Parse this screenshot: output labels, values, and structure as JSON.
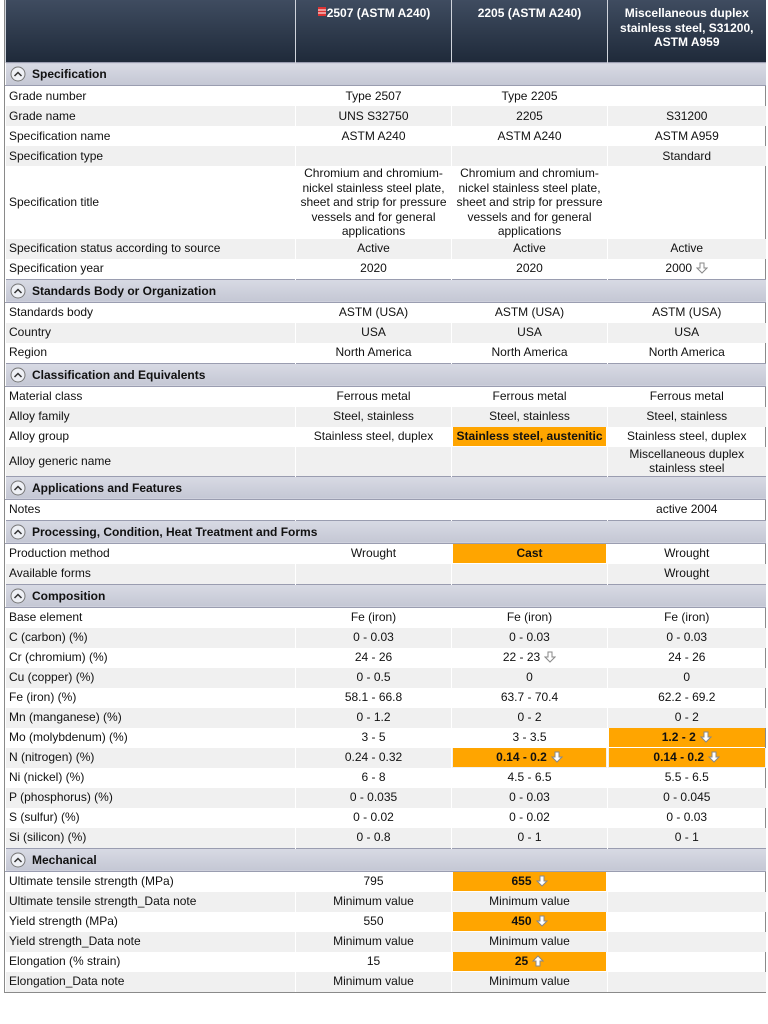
{
  "header": {
    "columns": [
      "2507 (ASTM A240)",
      "2205 (ASTM A240)",
      "Miscellaneous duplex stainless steel, S31200, ASTM A959"
    ]
  },
  "sections": [
    {
      "title": "Specification",
      "rows": [
        {
          "label": "Grade number",
          "cells": [
            "Type 2507",
            "Type 2205",
            null
          ]
        },
        {
          "label": "Grade name",
          "cells": [
            "UNS S32750",
            "2205",
            "S31200"
          ]
        },
        {
          "label": "Specification name",
          "cells": [
            "ASTM A240",
            "ASTM A240",
            "ASTM A959"
          ]
        },
        {
          "label": "Specification type",
          "cells": [
            null,
            null,
            "Standard"
          ]
        },
        {
          "label": "Specification title",
          "cells": [
            "Chromium and chromium-nickel stainless steel plate, sheet and strip for pressure vessels and for general applications",
            "Chromium and chromium-nickel stainless steel plate, sheet and strip for pressure vessels and for general applications",
            null
          ]
        },
        {
          "label": "Specification status according to source",
          "cells": [
            "Active",
            "Active",
            "Active"
          ]
        },
        {
          "label": "Specification year",
          "cells": [
            "2020",
            "2020",
            "2000"
          ],
          "arrow": [
            null,
            null,
            "down"
          ]
        }
      ]
    },
    {
      "title": "Standards Body or Organization",
      "rows": [
        {
          "label": "Standards body",
          "cells": [
            "ASTM (USA)",
            "ASTM (USA)",
            "ASTM (USA)"
          ]
        },
        {
          "label": "Country",
          "cells": [
            "USA",
            "USA",
            "USA"
          ]
        },
        {
          "label": "Region",
          "cells": [
            "North America",
            "North America",
            "North America"
          ]
        }
      ]
    },
    {
      "title": "Classification and Equivalents",
      "rows": [
        {
          "label": "Material class",
          "cells": [
            "Ferrous metal",
            "Ferrous metal",
            "Ferrous metal"
          ]
        },
        {
          "label": "Alloy family",
          "cells": [
            "Steel, stainless",
            "Steel, stainless",
            "Steel, stainless"
          ]
        },
        {
          "label": "Alloy group",
          "cells": [
            "Stainless steel, duplex",
            "Stainless steel, austenitic",
            "Stainless steel, duplex"
          ],
          "highlight": [
            false,
            true,
            false
          ]
        },
        {
          "label": "Alloy generic name",
          "cells": [
            null,
            null,
            "Miscellaneous duplex stainless steel"
          ]
        }
      ]
    },
    {
      "title": "Applications and Features",
      "rows": [
        {
          "label": "Notes",
          "cells": [
            null,
            null,
            "active 2004"
          ]
        }
      ]
    },
    {
      "title": "Processing, Condition, Heat Treatment and Forms",
      "rows": [
        {
          "label": "Production method",
          "cells": [
            "Wrought",
            "Cast",
            "Wrought"
          ],
          "highlight": [
            false,
            true,
            false
          ]
        },
        {
          "label": "Available forms",
          "cells": [
            null,
            null,
            "Wrought"
          ]
        }
      ]
    },
    {
      "title": "Composition",
      "rows": [
        {
          "label": "Base element",
          "cells": [
            "Fe (iron)",
            "Fe (iron)",
            "Fe (iron)"
          ]
        },
        {
          "label": "C (carbon) (%)",
          "cells": [
            "0 - 0.03",
            "0 - 0.03",
            "0 - 0.03"
          ]
        },
        {
          "label": "Cr (chromium) (%)",
          "cells": [
            "24 - 26",
            "22 - 23",
            "24 - 26"
          ],
          "arrow": [
            null,
            "down",
            null
          ]
        },
        {
          "label": "Cu (copper) (%)",
          "cells": [
            "0 - 0.5",
            "0",
            "0"
          ]
        },
        {
          "label": "Fe (iron) (%)",
          "cells": [
            "58.1 - 66.8",
            "63.7 - 70.4",
            "62.2 - 69.2"
          ]
        },
        {
          "label": "Mn (manganese) (%)",
          "cells": [
            "0 - 1.2",
            "0 - 2",
            "0 - 2"
          ]
        },
        {
          "label": "Mo (molybdenum) (%)",
          "cells": [
            "3 - 5",
            "3 - 3.5",
            "1.2 - 2"
          ],
          "highlight": [
            false,
            false,
            true
          ],
          "arrow": [
            null,
            null,
            "down"
          ]
        },
        {
          "label": "N (nitrogen) (%)",
          "cells": [
            "0.24 - 0.32",
            "0.14 - 0.2",
            "0.14 - 0.2"
          ],
          "highlight": [
            false,
            true,
            true
          ],
          "arrow": [
            null,
            "down",
            "down"
          ]
        },
        {
          "label": "Ni (nickel) (%)",
          "cells": [
            "6 - 8",
            "4.5 - 6.5",
            "5.5 - 6.5"
          ]
        },
        {
          "label": "P (phosphorus) (%)",
          "cells": [
            "0 - 0.035",
            "0 - 0.03",
            "0 - 0.045"
          ]
        },
        {
          "label": "S (sulfur) (%)",
          "cells": [
            "0 - 0.02",
            "0 - 0.02",
            "0 - 0.03"
          ]
        },
        {
          "label": "Si (silicon) (%)",
          "cells": [
            "0 - 0.8",
            "0 - 1",
            "0 - 1"
          ]
        }
      ]
    },
    {
      "title": "Mechanical",
      "rows": [
        {
          "label": "Ultimate tensile strength (MPa)",
          "cells": [
            "795",
            "655",
            null
          ],
          "highlight": [
            false,
            true,
            false
          ],
          "arrow": [
            null,
            "down",
            null
          ]
        },
        {
          "label": "Ultimate tensile strength_Data note",
          "cells": [
            "Minimum value",
            "Minimum value",
            null
          ]
        },
        {
          "label": "Yield strength (MPa)",
          "cells": [
            "550",
            "450",
            null
          ],
          "highlight": [
            false,
            true,
            false
          ],
          "arrow": [
            null,
            "down",
            null
          ]
        },
        {
          "label": "Yield strength_Data note",
          "cells": [
            "Minimum value",
            "Minimum value",
            null
          ]
        },
        {
          "label": "Elongation (% strain)",
          "cells": [
            "15",
            "25",
            null
          ],
          "highlight": [
            false,
            true,
            false
          ],
          "arrow": [
            null,
            "up",
            null
          ]
        },
        {
          "label": "Elongation_Data note",
          "cells": [
            "Minimum value",
            "Minimum value",
            null
          ]
        }
      ]
    }
  ]
}
